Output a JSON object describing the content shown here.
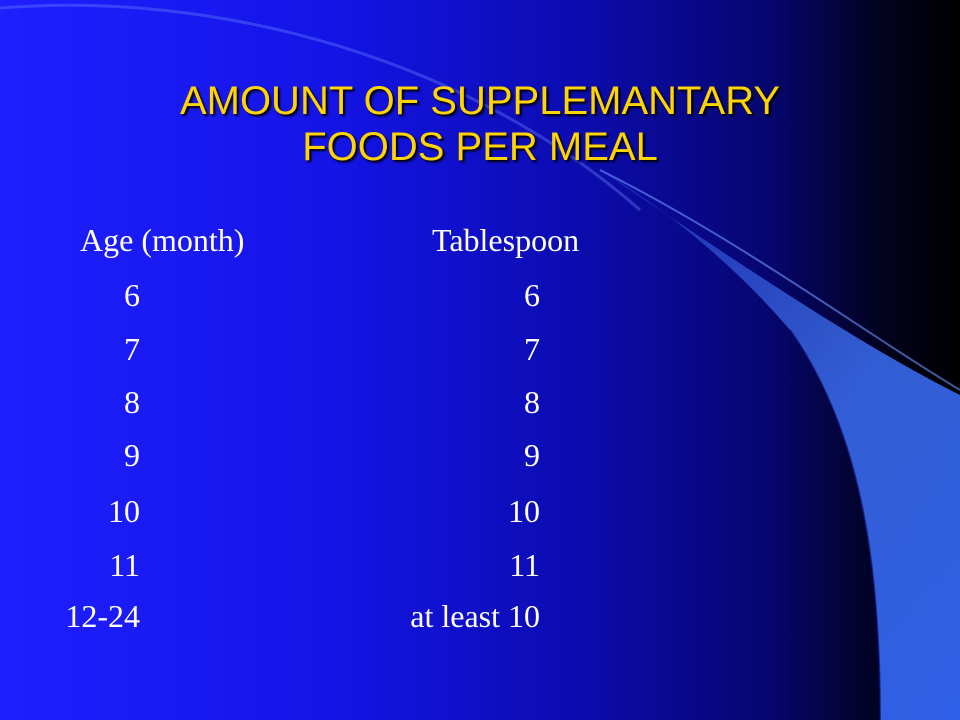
{
  "slide": {
    "title_line1": "AMOUNT OF SUPPLEMANTARY",
    "title_line2": "FOODS PER MEAL",
    "headers": {
      "age": "Age (month)",
      "tablespoon": "Tablespoon"
    },
    "rows": [
      {
        "age": "6",
        "tablespoon": "6"
      },
      {
        "age": "7",
        "tablespoon": "7"
      },
      {
        "age": "8",
        "tablespoon": "8"
      },
      {
        "age": "9",
        "tablespoon": "9"
      },
      {
        "age": "10",
        "tablespoon": "10"
      },
      {
        "age": "11",
        "tablespoon": "11"
      },
      {
        "age": "12-24",
        "tablespoon": "at least 10"
      }
    ]
  },
  "colors": {
    "background": "#1f1fff",
    "title": "#ffd400",
    "body_text": "#ffffff",
    "accent_shape": "#3a6cf0"
  }
}
